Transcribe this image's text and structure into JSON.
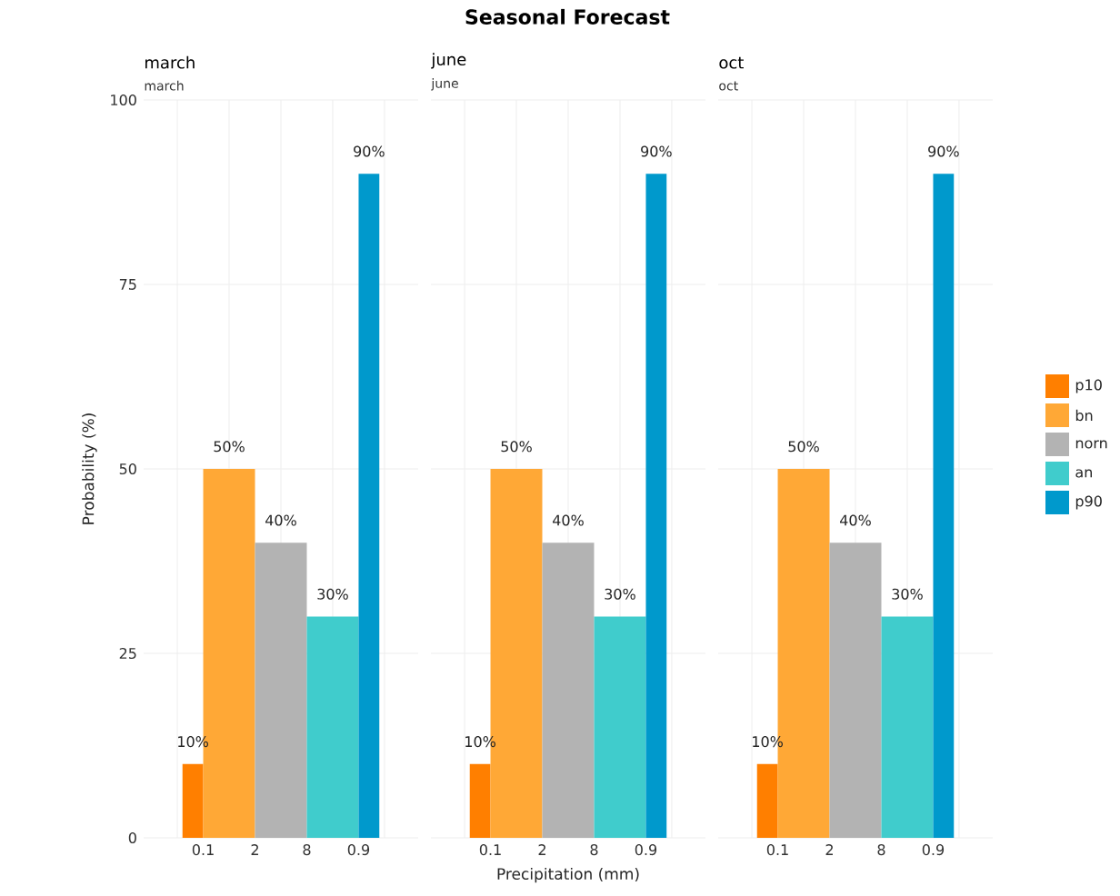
{
  "chart_data": [
    {
      "type": "bar",
      "title": "march",
      "subtitle": "march",
      "annotations": [
        "Seasonal Forecast"
      ],
      "ylabel": "Probability (%)",
      "categories": [
        "0.1",
        "2",
        "8",
        "0.9"
      ],
      "ylim": [
        0,
        100
      ],
      "yticks": [
        0,
        25,
        50,
        75,
        100
      ],
      "grid": true,
      "series": [
        {
          "color": "#ff7f00",
          "values": [
            10,
            null,
            null,
            null
          ],
          "value_labels": [
            "10%",
            null,
            null,
            null
          ]
        },
        {
          "color": "#ffa836",
          "values": [
            50,
            null,
            null,
            null
          ],
          "value_labels": [
            "50%",
            null,
            null,
            null
          ]
        },
        {
          "color": "#b3b3b3",
          "values": [
            null,
            40,
            null,
            null
          ],
          "value_labels": [
            null,
            "40%",
            null,
            null
          ]
        },
        {
          "color": "#40cccc",
          "values": [
            null,
            null,
            30,
            null
          ],
          "value_labels": [
            null,
            null,
            "30%",
            null
          ]
        },
        {
          "color": "#0099cc",
          "values": [
            null,
            null,
            null,
            90
          ],
          "value_labels": [
            null,
            null,
            null,
            "90%"
          ]
        }
      ]
    },
    {
      "type": "bar",
      "title": "june",
      "subtitle": "june",
      "xlabel": "Precipitation (mm)",
      "tick_labels": "x",
      "categories": [
        "0.1",
        "2",
        "8",
        "0.9"
      ],
      "ylim": [
        0,
        100
      ],
      "yticks": [
        0,
        25,
        50,
        75,
        100
      ],
      "grid": true,
      "series": [
        {
          "color": "#ff7f00",
          "values": [
            10,
            null,
            null,
            null
          ],
          "value_labels": [
            "10%",
            null,
            null,
            null
          ]
        },
        {
          "color": "#ffa836",
          "values": [
            50,
            null,
            null,
            null
          ],
          "value_labels": [
            "50%",
            null,
            null,
            null
          ]
        },
        {
          "color": "#b3b3b3",
          "values": [
            null,
            40,
            null,
            null
          ],
          "value_labels": [
            null,
            "40%",
            null,
            null
          ]
        },
        {
          "color": "#40cccc",
          "values": [
            null,
            null,
            30,
            null
          ],
          "value_labels": [
            null,
            null,
            "30%",
            null
          ]
        },
        {
          "color": "#0099cc",
          "values": [
            null,
            null,
            null,
            90
          ],
          "value_labels": [
            null,
            null,
            null,
            "90%"
          ]
        }
      ]
    },
    {
      "type": "bar",
      "title": "oct",
      "subtitle": "oct",
      "tick_labels": "x",
      "legend": "right",
      "categories": [
        "0.1",
        "2",
        "8",
        "0.9"
      ],
      "ylim": [
        0,
        100
      ],
      "yticks": [
        0,
        25,
        50,
        75,
        100
      ],
      "grid": true,
      "series": [
        {
          "name": "p10",
          "color": "#ff7f00",
          "values": [
            10,
            null,
            null,
            null
          ],
          "value_labels": [
            "10%",
            null,
            null,
            null
          ]
        },
        {
          "name": "bn",
          "color": "#ffa836",
          "values": [
            50,
            null,
            null,
            null
          ],
          "value_labels": [
            "50%",
            null,
            null,
            null
          ]
        },
        {
          "name": "norn",
          "color": "#b3b3b3",
          "values": [
            null,
            40,
            null,
            null
          ],
          "value_labels": [
            null,
            "40%",
            null,
            null
          ]
        },
        {
          "name": "an",
          "color": "#40cccc",
          "values": [
            null,
            null,
            30,
            null
          ],
          "value_labels": [
            null,
            null,
            "30%",
            null
          ]
        },
        {
          "name": "p90",
          "color": "#0099cc",
          "values": [
            null,
            null,
            null,
            90
          ],
          "value_labels": [
            null,
            null,
            null,
            "90%"
          ]
        }
      ]
    }
  ]
}
